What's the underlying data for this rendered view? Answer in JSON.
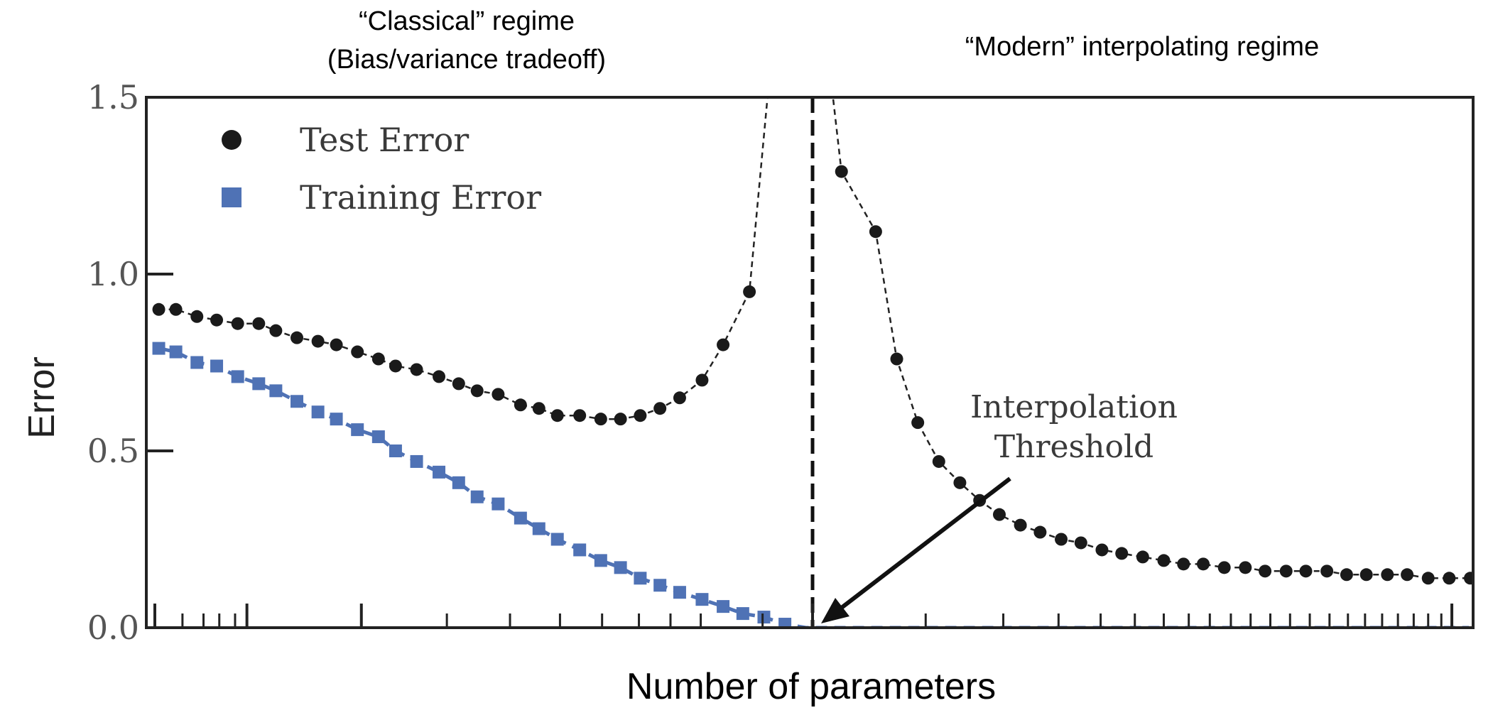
{
  "chart_data": {
    "type": "line",
    "title": "",
    "xlabel": "Number of parameters",
    "ylabel": "Error",
    "ylim": [
      0,
      1.5
    ],
    "y_ticks": [
      "0.0",
      "0.5",
      "1.0",
      "1.5"
    ],
    "x_range": [
      0,
      100
    ],
    "grid": false,
    "legend": "top-left",
    "regime_labels": {
      "classical": [
        "“Classical” regime",
        "(Bias/variance tradeoff)"
      ],
      "modern": "“Modern” interpolating regime"
    },
    "annotation": {
      "text": [
        "Interpolation",
        "Threshold"
      ],
      "x": 50,
      "y": 0.0
    },
    "threshold_x": 50,
    "series": [
      {
        "name": "Test Error",
        "color": "#1a1a1a",
        "marker": "circle",
        "x": [
          0.3,
          1.6,
          3.2,
          4.7,
          6.3,
          7.9,
          9.2,
          10.8,
          12.4,
          13.8,
          15.4,
          17.0,
          18.3,
          19.9,
          21.6,
          23.1,
          24.5,
          26.1,
          27.8,
          29.2,
          30.6,
          32.3,
          33.9,
          35.4,
          36.9,
          38.4,
          39.9,
          41.6,
          43.2,
          45.2,
          52.2,
          54.8,
          56.4,
          58.0,
          59.6,
          61.2,
          62.7,
          64.2,
          65.8,
          67.3,
          68.9,
          70.4,
          72.0,
          73.5,
          75.1,
          76.7,
          78.2,
          79.7,
          81.3,
          82.9,
          84.4,
          86.0,
          87.5,
          89.1,
          90.6,
          92.1,
          93.7,
          95.2,
          96.8,
          98.4,
          100.0
        ],
        "values": [
          0.9,
          0.9,
          0.88,
          0.87,
          0.86,
          0.86,
          0.84,
          0.82,
          0.81,
          0.8,
          0.78,
          0.76,
          0.74,
          0.73,
          0.71,
          0.69,
          0.67,
          0.66,
          0.63,
          0.62,
          0.6,
          0.6,
          0.59,
          0.59,
          0.6,
          0.62,
          0.65,
          0.7,
          0.8,
          0.95,
          1.29,
          1.12,
          0.76,
          0.58,
          0.47,
          0.41,
          0.36,
          0.32,
          0.29,
          0.27,
          0.25,
          0.24,
          0.22,
          0.21,
          0.2,
          0.19,
          0.18,
          0.18,
          0.17,
          0.17,
          0.16,
          0.16,
          0.16,
          0.16,
          0.15,
          0.15,
          0.15,
          0.15,
          0.14,
          0.14,
          0.14
        ]
      },
      {
        "name": "Training Error",
        "color": "#4f72b5",
        "marker": "square",
        "x": [
          0.3,
          1.6,
          3.2,
          4.7,
          6.3,
          7.9,
          9.2,
          10.8,
          12.4,
          13.8,
          15.4,
          17.0,
          18.3,
          19.9,
          21.6,
          23.1,
          24.5,
          26.1,
          27.8,
          29.2,
          30.6,
          32.3,
          33.9,
          35.4,
          36.9,
          38.4,
          39.9,
          41.6,
          43.2,
          44.7,
          46.3,
          47.9,
          49.5,
          51.0,
          52.6,
          54.2,
          55.8,
          57.3,
          58.9,
          60.5,
          62.1,
          63.6,
          65.2,
          66.8,
          68.4,
          69.9,
          71.5,
          73.1,
          74.7,
          76.2,
          77.8,
          79.4,
          81.0,
          82.5,
          84.1,
          85.7,
          87.3,
          88.8,
          90.4,
          92.0,
          93.6,
          95.1,
          96.7,
          98.3,
          99.9
        ],
        "values": [
          0.79,
          0.78,
          0.75,
          0.74,
          0.71,
          0.69,
          0.67,
          0.64,
          0.61,
          0.59,
          0.56,
          0.54,
          0.5,
          0.47,
          0.44,
          0.41,
          0.37,
          0.35,
          0.31,
          0.28,
          0.25,
          0.22,
          0.19,
          0.17,
          0.14,
          0.12,
          0.1,
          0.08,
          0.06,
          0.04,
          0.03,
          0.01,
          0.0,
          0.0,
          0.0,
          0.0,
          0.0,
          0.0,
          0.0,
          0.0,
          0.0,
          0.0,
          0.0,
          0.0,
          0.0,
          0.0,
          0.0,
          0.0,
          0.0,
          0.0,
          0.0,
          0.0,
          0.0,
          0.0,
          0.0,
          0.0,
          0.0,
          0.0,
          0.0,
          0.0,
          0.0,
          0.0,
          0.0,
          0.0,
          0.0
        ]
      }
    ]
  }
}
